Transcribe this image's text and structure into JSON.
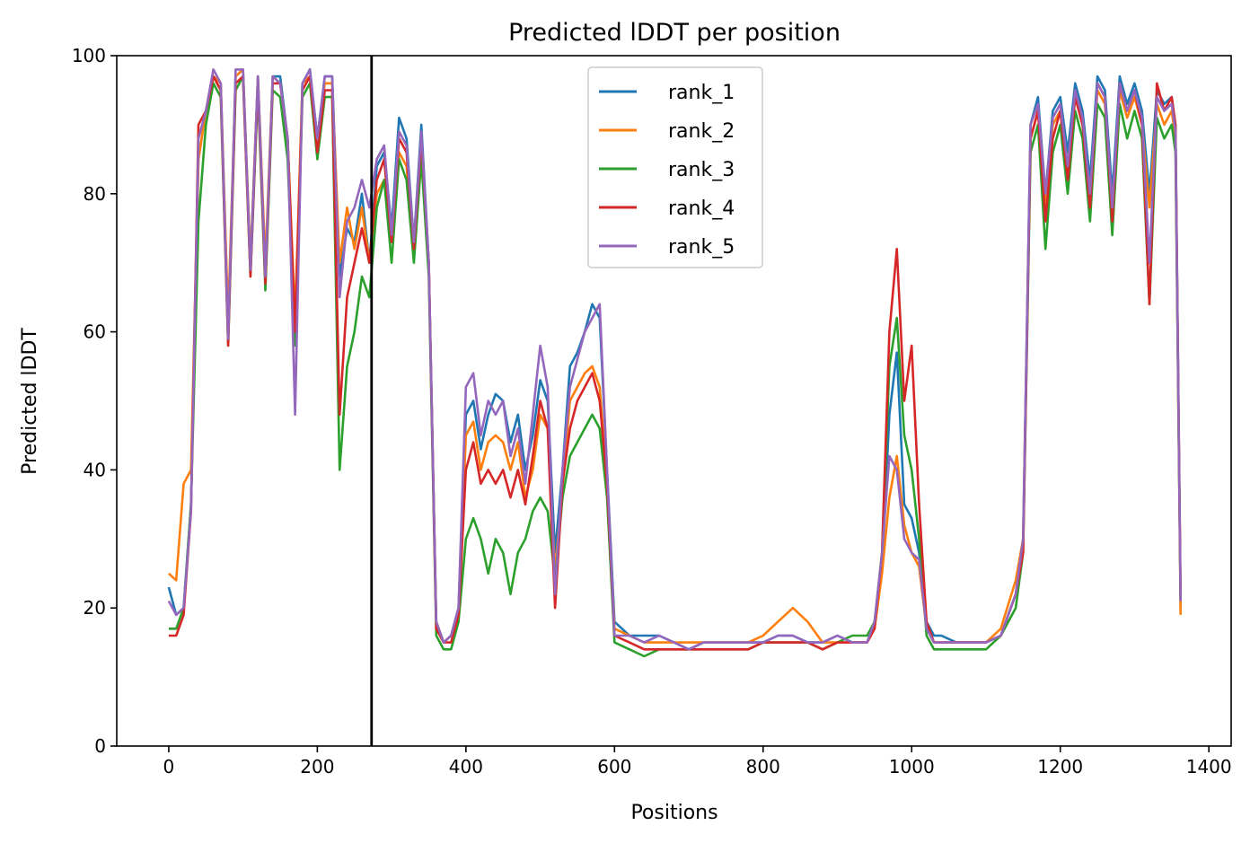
{
  "chart_data": {
    "type": "line",
    "title": "Predicted lDDT per position",
    "xlabel": "Positions",
    "ylabel": "Predicted lDDT",
    "xlim": [
      -70,
      1430
    ],
    "ylim": [
      0,
      100
    ],
    "xticks": [
      0,
      200,
      400,
      600,
      800,
      1000,
      1200,
      1400
    ],
    "yticks": [
      0,
      20,
      40,
      60,
      80,
      100
    ],
    "grid": false,
    "legend_position": "top-center",
    "vline": {
      "x": 273,
      "color": "#000000"
    },
    "series": [
      {
        "name": "rank_1",
        "color": "#1f77b4",
        "x": [
          0,
          10,
          20,
          30,
          40,
          50,
          60,
          70,
          80,
          90,
          100,
          110,
          120,
          130,
          140,
          150,
          160,
          170,
          180,
          190,
          200,
          210,
          220,
          230,
          240,
          250,
          260,
          270,
          280,
          290,
          300,
          310,
          320,
          330,
          340,
          350,
          360,
          370,
          380,
          390,
          400,
          410,
          420,
          430,
          440,
          450,
          460,
          470,
          480,
          490,
          500,
          510,
          520,
          530,
          540,
          550,
          560,
          570,
          580,
          590,
          600,
          620,
          640,
          660,
          680,
          700,
          720,
          740,
          760,
          780,
          800,
          820,
          840,
          860,
          880,
          900,
          920,
          940,
          950,
          960,
          970,
          980,
          990,
          1000,
          1010,
          1020,
          1030,
          1040,
          1060,
          1080,
          1100,
          1120,
          1140,
          1150,
          1160,
          1170,
          1180,
          1190,
          1200,
          1210,
          1220,
          1230,
          1240,
          1250,
          1260,
          1270,
          1280,
          1290,
          1300,
          1310,
          1320,
          1330,
          1340,
          1350,
          1355,
          1362
        ],
        "y": [
          23,
          19,
          20,
          35,
          85,
          92,
          97,
          96,
          60,
          97,
          98,
          70,
          97,
          68,
          97,
          97,
          88,
          60,
          96,
          98,
          88,
          97,
          97,
          68,
          75,
          73,
          80,
          70,
          84,
          86,
          75,
          91,
          88,
          73,
          90,
          70,
          18,
          15,
          16,
          20,
          48,
          50,
          43,
          48,
          51,
          50,
          44,
          48,
          40,
          45,
          53,
          50,
          28,
          40,
          55,
          57,
          60,
          64,
          62,
          40,
          18,
          16,
          16,
          16,
          15,
          14,
          15,
          15,
          15,
          15,
          15,
          16,
          16,
          15,
          15,
          16,
          15,
          15,
          18,
          26,
          48,
          57,
          35,
          33,
          28,
          18,
          16,
          16,
          15,
          15,
          15,
          16,
          22,
          30,
          90,
          94,
          80,
          92,
          94,
          86,
          96,
          92,
          82,
          97,
          95,
          80,
          97,
          93,
          96,
          92,
          80,
          95,
          93,
          94,
          90,
          20
        ]
      },
      {
        "name": "rank_2",
        "color": "#ff7f0e",
        "x": [
          0,
          10,
          20,
          30,
          40,
          50,
          60,
          70,
          80,
          90,
          100,
          110,
          120,
          130,
          140,
          150,
          160,
          170,
          180,
          190,
          200,
          210,
          220,
          230,
          240,
          250,
          260,
          270,
          280,
          290,
          300,
          310,
          320,
          330,
          340,
          350,
          360,
          370,
          380,
          390,
          400,
          410,
          420,
          430,
          440,
          450,
          460,
          470,
          480,
          490,
          500,
          510,
          520,
          530,
          540,
          550,
          560,
          570,
          580,
          590,
          600,
          620,
          640,
          660,
          680,
          700,
          720,
          740,
          760,
          780,
          800,
          820,
          840,
          860,
          880,
          900,
          920,
          940,
          950,
          960,
          970,
          980,
          990,
          1000,
          1010,
          1020,
          1030,
          1040,
          1060,
          1080,
          1100,
          1120,
          1140,
          1150,
          1160,
          1170,
          1180,
          1190,
          1200,
          1210,
          1220,
          1230,
          1240,
          1250,
          1260,
          1270,
          1280,
          1290,
          1300,
          1310,
          1320,
          1330,
          1340,
          1350,
          1355,
          1362
        ],
        "y": [
          25,
          24,
          38,
          40,
          85,
          92,
          97,
          96,
          62,
          97,
          98,
          70,
          97,
          70,
          97,
          96,
          88,
          62,
          96,
          97,
          88,
          96,
          96,
          70,
          78,
          72,
          78,
          70,
          80,
          82,
          73,
          86,
          84,
          72,
          86,
          70,
          18,
          15,
          16,
          19,
          45,
          47,
          40,
          44,
          45,
          44,
          40,
          44,
          36,
          40,
          48,
          46,
          25,
          38,
          50,
          52,
          54,
          55,
          52,
          38,
          17,
          16,
          15,
          15,
          15,
          15,
          15,
          15,
          15,
          15,
          16,
          18,
          20,
          18,
          15,
          15,
          15,
          15,
          17,
          25,
          36,
          42,
          32,
          28,
          26,
          17,
          15,
          15,
          15,
          15,
          15,
          17,
          24,
          30,
          88,
          92,
          78,
          90,
          92,
          84,
          94,
          90,
          80,
          95,
          93,
          78,
          95,
          91,
          94,
          90,
          78,
          93,
          90,
          92,
          88,
          19
        ]
      },
      {
        "name": "rank_3",
        "color": "#2ca02c",
        "x": [
          0,
          10,
          20,
          30,
          40,
          50,
          60,
          70,
          80,
          90,
          100,
          110,
          120,
          130,
          140,
          150,
          160,
          170,
          180,
          190,
          200,
          210,
          220,
          230,
          240,
          250,
          260,
          270,
          280,
          290,
          300,
          310,
          320,
          330,
          340,
          350,
          360,
          370,
          380,
          390,
          400,
          410,
          420,
          430,
          440,
          450,
          460,
          470,
          480,
          490,
          500,
          510,
          520,
          530,
          540,
          550,
          560,
          570,
          580,
          590,
          600,
          620,
          640,
          660,
          680,
          700,
          720,
          740,
          760,
          780,
          800,
          820,
          840,
          860,
          880,
          900,
          920,
          940,
          950,
          960,
          970,
          980,
          990,
          1000,
          1010,
          1020,
          1030,
          1040,
          1060,
          1080,
          1100,
          1120,
          1140,
          1150,
          1160,
          1170,
          1180,
          1190,
          1200,
          1210,
          1220,
          1230,
          1240,
          1250,
          1260,
          1270,
          1280,
          1290,
          1300,
          1310,
          1320,
          1330,
          1340,
          1350,
          1355,
          1362
        ],
        "y": [
          17,
          17,
          20,
          35,
          76,
          90,
          96,
          94,
          58,
          95,
          97,
          68,
          95,
          66,
          95,
          94,
          85,
          58,
          94,
          96,
          85,
          94,
          94,
          40,
          55,
          60,
          68,
          65,
          78,
          82,
          70,
          85,
          82,
          70,
          85,
          68,
          16,
          14,
          14,
          18,
          30,
          33,
          30,
          25,
          30,
          28,
          22,
          28,
          30,
          34,
          36,
          34,
          24,
          36,
          42,
          44,
          46,
          48,
          46,
          36,
          15,
          14,
          13,
          14,
          14,
          14,
          14,
          14,
          14,
          14,
          15,
          15,
          15,
          15,
          14,
          15,
          16,
          16,
          18,
          28,
          55,
          62,
          45,
          40,
          30,
          16,
          14,
          14,
          14,
          14,
          14,
          16,
          20,
          28,
          86,
          90,
          72,
          86,
          90,
          80,
          92,
          88,
          76,
          93,
          91,
          74,
          93,
          88,
          92,
          88,
          64,
          91,
          88,
          90,
          86,
          21
        ]
      },
      {
        "name": "rank_4",
        "color": "#d62728",
        "x": [
          0,
          10,
          20,
          30,
          40,
          50,
          60,
          70,
          80,
          90,
          100,
          110,
          120,
          130,
          140,
          150,
          160,
          170,
          180,
          190,
          200,
          210,
          220,
          230,
          240,
          250,
          260,
          270,
          280,
          290,
          300,
          310,
          320,
          330,
          340,
          350,
          360,
          370,
          380,
          390,
          400,
          410,
          420,
          430,
          440,
          450,
          460,
          470,
          480,
          490,
          500,
          510,
          520,
          530,
          540,
          550,
          560,
          570,
          580,
          590,
          600,
          620,
          640,
          660,
          680,
          700,
          720,
          740,
          760,
          780,
          800,
          820,
          840,
          860,
          880,
          900,
          920,
          940,
          950,
          960,
          970,
          980,
          990,
          1000,
          1010,
          1020,
          1030,
          1040,
          1060,
          1080,
          1100,
          1120,
          1140,
          1150,
          1160,
          1170,
          1180,
          1190,
          1200,
          1210,
          1220,
          1230,
          1240,
          1250,
          1260,
          1270,
          1280,
          1290,
          1300,
          1310,
          1320,
          1330,
          1340,
          1350,
          1355,
          1362
        ],
        "y": [
          16,
          16,
          19,
          34,
          90,
          92,
          97,
          95,
          58,
          96,
          97,
          68,
          96,
          67,
          96,
          96,
          88,
          60,
          95,
          97,
          86,
          95,
          95,
          48,
          65,
          70,
          75,
          70,
          82,
          85,
          73,
          88,
          86,
          72,
          88,
          70,
          17,
          15,
          15,
          19,
          40,
          44,
          38,
          40,
          38,
          40,
          36,
          40,
          35,
          42,
          50,
          46,
          20,
          38,
          46,
          50,
          52,
          54,
          50,
          38,
          16,
          15,
          14,
          14,
          14,
          14,
          14,
          14,
          14,
          14,
          15,
          15,
          15,
          15,
          14,
          15,
          15,
          15,
          17,
          28,
          60,
          72,
          50,
          58,
          35,
          18,
          15,
          15,
          15,
          15,
          15,
          16,
          22,
          28,
          88,
          92,
          76,
          88,
          92,
          82,
          94,
          90,
          78,
          96,
          94,
          76,
          96,
          92,
          95,
          90,
          64,
          96,
          92,
          94,
          90,
          22
        ]
      },
      {
        "name": "rank_5",
        "color": "#9467bd",
        "x": [
          0,
          10,
          20,
          30,
          40,
          50,
          60,
          70,
          80,
          90,
          100,
          110,
          120,
          130,
          140,
          150,
          160,
          170,
          180,
          190,
          200,
          210,
          220,
          230,
          240,
          250,
          260,
          270,
          280,
          290,
          300,
          310,
          320,
          330,
          340,
          350,
          360,
          370,
          380,
          390,
          400,
          410,
          420,
          430,
          440,
          450,
          460,
          470,
          480,
          490,
          500,
          510,
          520,
          530,
          540,
          550,
          560,
          570,
          580,
          590,
          600,
          620,
          640,
          660,
          680,
          700,
          720,
          740,
          760,
          780,
          800,
          820,
          840,
          860,
          880,
          900,
          920,
          940,
          950,
          960,
          970,
          980,
          990,
          1000,
          1010,
          1020,
          1030,
          1040,
          1060,
          1080,
          1100,
          1120,
          1140,
          1150,
          1160,
          1170,
          1180,
          1190,
          1200,
          1210,
          1220,
          1230,
          1240,
          1250,
          1260,
          1270,
          1280,
          1290,
          1300,
          1310,
          1320,
          1330,
          1340,
          1350,
          1355,
          1362
        ],
        "y": [
          21,
          19,
          20,
          34,
          88,
          92,
          98,
          96,
          59,
          98,
          98,
          69,
          97,
          68,
          97,
          96,
          88,
          48,
          96,
          98,
          88,
          97,
          97,
          65,
          76,
          78,
          82,
          78,
          85,
          87,
          74,
          89,
          87,
          73,
          89,
          70,
          18,
          15,
          16,
          20,
          52,
          54,
          45,
          50,
          48,
          50,
          42,
          46,
          38,
          48,
          58,
          52,
          22,
          40,
          52,
          56,
          60,
          62,
          64,
          40,
          16,
          16,
          15,
          16,
          15,
          14,
          15,
          15,
          15,
          15,
          15,
          16,
          16,
          15,
          15,
          16,
          15,
          15,
          18,
          28,
          42,
          40,
          30,
          28,
          27,
          17,
          15,
          15,
          15,
          15,
          15,
          16,
          22,
          30,
          90,
          93,
          80,
          91,
          93,
          84,
          95,
          91,
          80,
          96,
          94,
          78,
          96,
          92,
          95,
          91,
          70,
          94,
          92,
          93,
          89,
          21
        ]
      }
    ]
  }
}
